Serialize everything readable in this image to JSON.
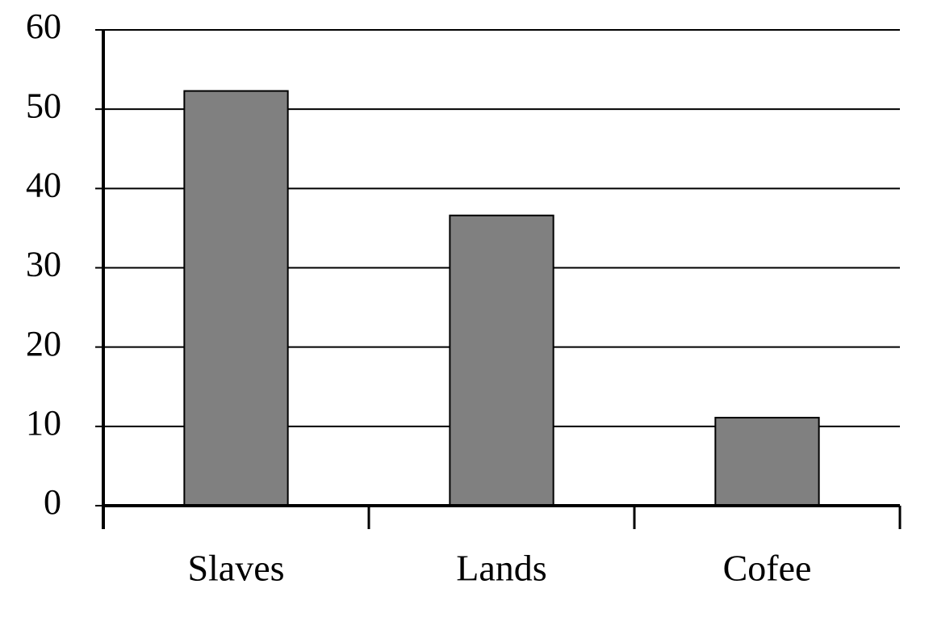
{
  "chart_data": {
    "type": "bar",
    "categories": [
      "Slaves",
      "Lands",
      "Cofee"
    ],
    "values": [
      52.3,
      36.6,
      11.1
    ],
    "color": "#808080",
    "ylim": [
      0,
      60
    ],
    "yticks": [
      0,
      10,
      20,
      30,
      40,
      50,
      60
    ],
    "grid": true
  }
}
